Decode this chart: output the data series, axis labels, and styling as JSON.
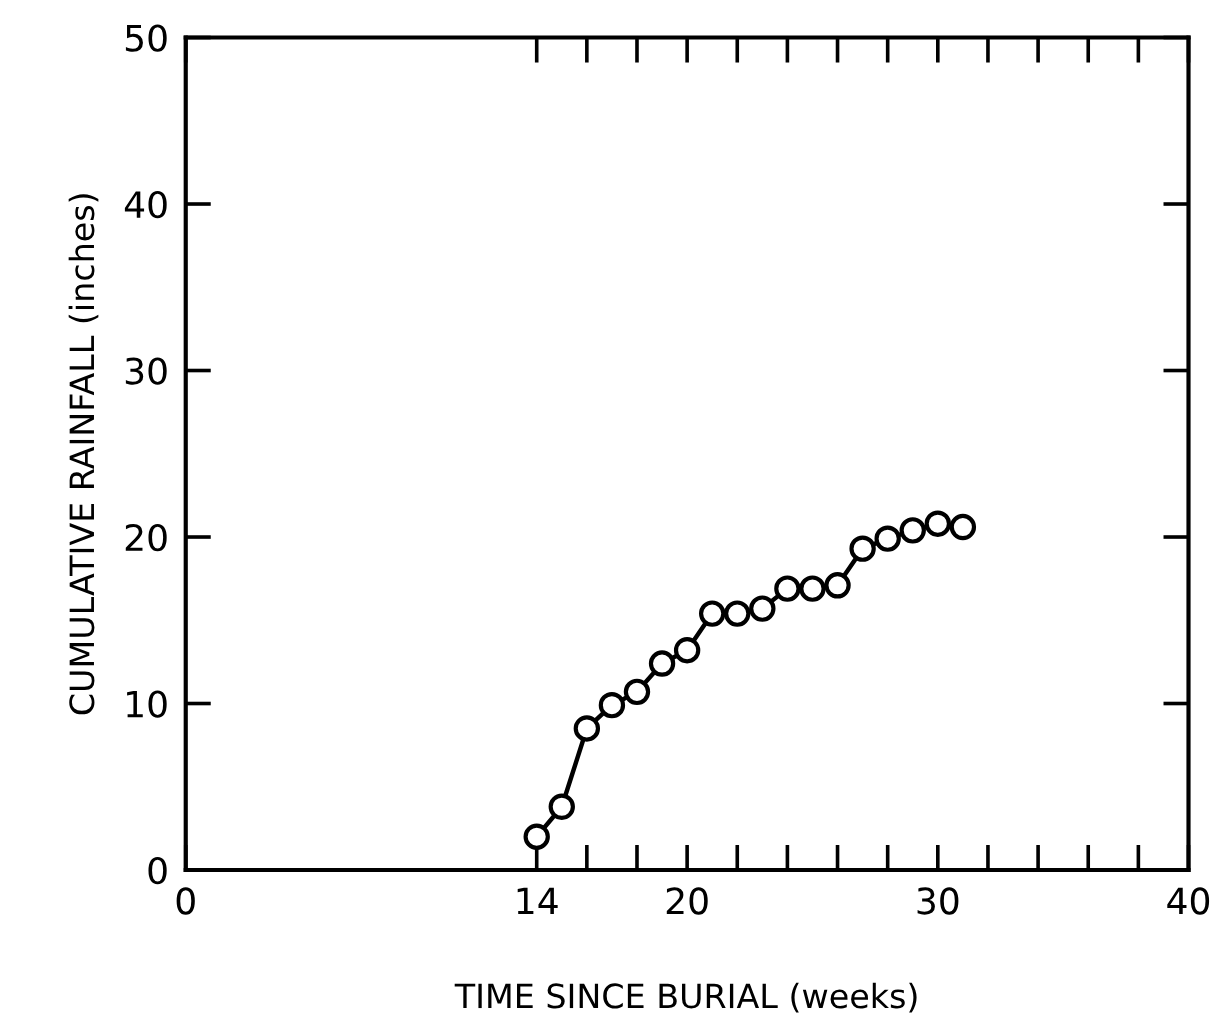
{
  "chart_data": {
    "type": "line",
    "xlabel": "TIME SINCE BURIAL (weeks)",
    "ylabel": "CUMULATIVE RAINFALL (inches)",
    "x": [
      14,
      15,
      16,
      17,
      18,
      19,
      20,
      21,
      22,
      23,
      24,
      25,
      26,
      27,
      28,
      29,
      30,
      31
    ],
    "series": [
      {
        "color": "#000000",
        "values": [
          2.0,
          3.8,
          8.5,
          9.9,
          10.7,
          12.4,
          13.2,
          15.4,
          15.4,
          15.7,
          16.9,
          16.9,
          17.1,
          19.3,
          19.9,
          20.4,
          20.8,
          20.6
        ]
      }
    ],
    "marker": "circle",
    "line_style": "solid",
    "grid": false,
    "legend": false,
    "xlim": [
      0,
      40
    ],
    "xticks": [
      0,
      14,
      {
        "value": 16,
        "label": null
      },
      {
        "value": 18,
        "label": null
      },
      20,
      {
        "value": 22,
        "label": null
      },
      {
        "value": 24,
        "label": null
      },
      {
        "value": 26,
        "label": null
      },
      {
        "value": 28,
        "label": null
      },
      30,
      {
        "value": 32,
        "label": null
      },
      {
        "value": 34,
        "label": null
      },
      {
        "value": 36,
        "label": null
      },
      {
        "value": 38,
        "label": null
      },
      40
    ],
    "ylim": [
      0,
      50
    ],
    "yticks": [
      0,
      10,
      20,
      30,
      40,
      50
    ]
  }
}
